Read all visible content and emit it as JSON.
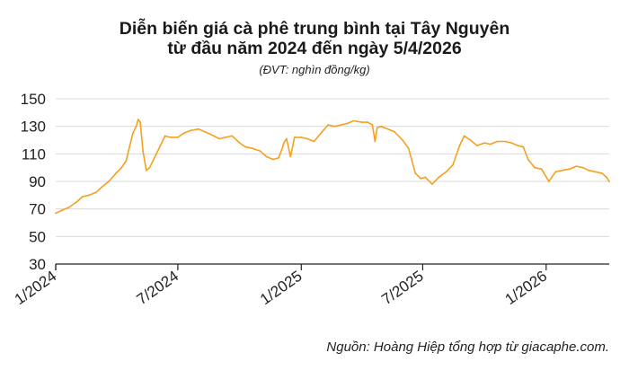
{
  "header": {
    "title_line1": "Diễn biến giá cà phê trung bình tại Tây Nguyên",
    "title_line2": "từ đầu năm 2024 đến ngày 5/4/2026",
    "unit": "(ĐVT: nghìn đồng/kg)"
  },
  "footer": {
    "source": "Nguồn: Hoàng Hiệp tổng hợp từ giacaphe.com."
  },
  "colors": {
    "line": "#F5A020",
    "grid": "#d9d9d9",
    "axis": "#222222"
  },
  "chart_data": {
    "type": "line",
    "title": "Diễn biến giá cà phê trung bình tại Tây Nguyên từ đầu năm 2024 đến ngày 5/4/2026",
    "subtitle": "(ĐVT: nghìn đồng/kg)",
    "xlabel": "",
    "ylabel": "",
    "ylim": [
      30,
      150
    ],
    "yticks": [
      30,
      50,
      70,
      90,
      110,
      130,
      150
    ],
    "xlim": [
      "2024-01-01",
      "2026-04-05"
    ],
    "xticks": [
      {
        "label": "1/2024",
        "date": "2024-01-01"
      },
      {
        "label": "7/2024",
        "date": "2024-07-01"
      },
      {
        "label": "1/2025",
        "date": "2025-01-01"
      },
      {
        "label": "7/2025",
        "date": "2025-07-01"
      },
      {
        "label": "1/2026",
        "date": "2026-01-01"
      }
    ],
    "grid": "horizontal",
    "series": [
      {
        "x": [
          "2024-01-01",
          "2024-01-10",
          "2024-01-20",
          "2024-02-01",
          "2024-02-10",
          "2024-02-20",
          "2024-03-01",
          "2024-03-10",
          "2024-03-20",
          "2024-03-31",
          "2024-04-08",
          "2024-04-15",
          "2024-04-20",
          "2024-04-25",
          "2024-04-30",
          "2024-05-03",
          "2024-05-06",
          "2024-05-10",
          "2024-05-15",
          "2024-05-20",
          "2024-05-28",
          "2024-06-05",
          "2024-06-12",
          "2024-06-20",
          "2024-07-01",
          "2024-07-10",
          "2024-07-20",
          "2024-08-01",
          "2024-08-10",
          "2024-08-20",
          "2024-09-01",
          "2024-09-10",
          "2024-09-20",
          "2024-10-01",
          "2024-10-10",
          "2024-10-20",
          "2024-11-01",
          "2024-11-10",
          "2024-11-20",
          "2024-11-28",
          "2024-12-03",
          "2024-12-06",
          "2024-12-10",
          "2024-12-16",
          "2024-12-22",
          "2025-01-01",
          "2025-01-10",
          "2025-01-20",
          "2025-02-01",
          "2025-02-10",
          "2025-02-20",
          "2025-03-01",
          "2025-03-10",
          "2025-03-20",
          "2025-04-01",
          "2025-04-10",
          "2025-04-17",
          "2025-04-21",
          "2025-04-24",
          "2025-04-30",
          "2025-05-10",
          "2025-05-20",
          "2025-06-01",
          "2025-06-10",
          "2025-06-20",
          "2025-06-28",
          "2025-07-05",
          "2025-07-15",
          "2025-07-25",
          "2025-08-05",
          "2025-08-15",
          "2025-08-25",
          "2025-09-01",
          "2025-09-10",
          "2025-09-20",
          "2025-10-01",
          "2025-10-10",
          "2025-10-20",
          "2025-11-01",
          "2025-11-10",
          "2025-11-20",
          "2025-11-28",
          "2025-12-05",
          "2025-12-15",
          "2025-12-25",
          "2026-01-05",
          "2026-01-15",
          "2026-01-25",
          "2026-02-05",
          "2026-02-15",
          "2026-02-25",
          "2026-03-05",
          "2026-03-15",
          "2026-03-25",
          "2026-04-01",
          "2026-04-05"
        ],
        "values": [
          67,
          69,
          71,
          75,
          79,
          80,
          82,
          86,
          90,
          96,
          100,
          105,
          115,
          125,
          130,
          135,
          133,
          112,
          98,
          100,
          108,
          116,
          123,
          122,
          122,
          125,
          127,
          128,
          126,
          124,
          121,
          122,
          123,
          118,
          115,
          114,
          112,
          108,
          106,
          107,
          113,
          118,
          121,
          108,
          122,
          122,
          121,
          119,
          126,
          131,
          130,
          131,
          132,
          134,
          133,
          133,
          131,
          119,
          129,
          130,
          128,
          126,
          120,
          114,
          96,
          92,
          93,
          88,
          93,
          97,
          102,
          116,
          123,
          120,
          116,
          118,
          117,
          119,
          119,
          118,
          116,
          115,
          106,
          100,
          99,
          90,
          97,
          98,
          99,
          101,
          100,
          98,
          97,
          96,
          93,
          90
        ]
      }
    ]
  }
}
